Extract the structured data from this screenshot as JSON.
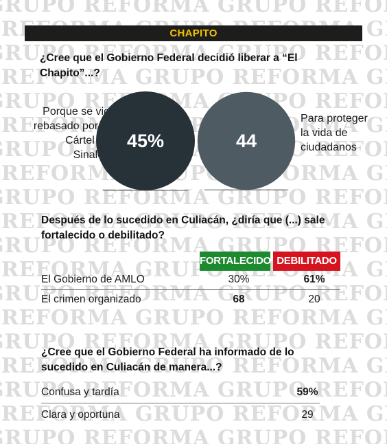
{
  "header": {
    "title": "CHAPITO"
  },
  "watermark": {
    "text": "GRUPO REFORMA"
  },
  "colors": {
    "title_bar": "#1d1d1b",
    "title_text": "#f2c300",
    "bubble_1": "#263238",
    "bubble_2": "#4f5b62",
    "fortalecido": "#1e8a2f",
    "debilitado": "#d6141f"
  },
  "q1": {
    "question": "¿Cree que el Gobierno Federal decidió liberar a “El Chapito”...?",
    "left_option": "Porque se vio rebasado por el Cártel de Sinaloa",
    "right_option": "Para proteger la vida de ciudadanos"
  },
  "q2": {
    "question": "Después de lo sucedido en Culiacán, ¿diría que (...) sale fortalecido o debilitado?",
    "legend": {
      "fortalecido": "FORTALECIDO",
      "debilitado": "DEBILITADO"
    },
    "rows": [
      {
        "label": "El Gobierno de AMLO",
        "fortalecido": "30%",
        "debilitado": "61%"
      },
      {
        "label": "El crimen organizado",
        "fortalecido": "68",
        "debilitado": "20"
      }
    ]
  },
  "q3": {
    "question": "¿Cree que el Gobierno Federal ha informado de lo sucedido en Culiacán de manera...?",
    "rows": [
      {
        "label": "Confusa y tardía",
        "value": "59%"
      },
      {
        "label": "Clara y oportuna",
        "value": "29"
      }
    ]
  },
  "chart_data": [
    {
      "type": "bubble",
      "title": "¿Cree que el Gobierno Federal decidió liberar a “El Chapito”...?",
      "categories": [
        "Porque se vio rebasado por el Cártel de Sinaloa",
        "Para proteger la vida de ciudadanos"
      ],
      "values": [
        45,
        44
      ],
      "value_labels": [
        "45%",
        "44"
      ],
      "unit": "%"
    },
    {
      "type": "table",
      "title": "Después de lo sucedido en Culiacán, ¿diría que (...) sale fortalecido o debilitado?",
      "columns": [
        "FORTALECIDO",
        "DEBILITADO"
      ],
      "rows": [
        "El Gobierno de AMLO",
        "El crimen organizado"
      ],
      "values": [
        [
          30,
          61
        ],
        [
          68,
          20
        ]
      ],
      "unit": "%"
    },
    {
      "type": "table",
      "title": "¿Cree que el Gobierno Federal ha informado de lo sucedido en Culiacán de manera...?",
      "rows": [
        "Confusa y tardía",
        "Clara y oportuna"
      ],
      "values": [
        59,
        29
      ],
      "unit": "%"
    }
  ]
}
